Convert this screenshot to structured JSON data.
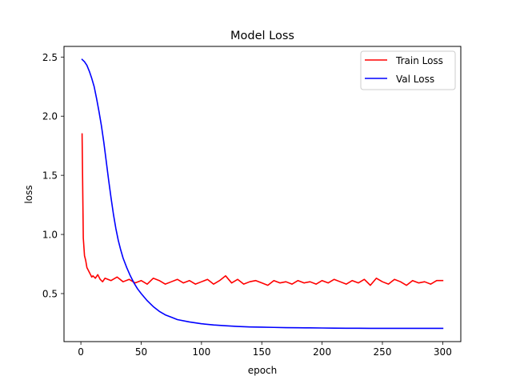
{
  "chart_data": {
    "type": "line",
    "title": "Model Loss",
    "xlabel": "epoch",
    "ylabel": "loss",
    "xlim": [
      -14,
      315
    ],
    "ylim": [
      0.094,
      2.59
    ],
    "xticks": [
      0,
      50,
      100,
      150,
      200,
      250,
      300
    ],
    "xtick_labels": [
      "0",
      "50",
      "100",
      "150",
      "200",
      "250",
      "300"
    ],
    "yticks": [
      0.5,
      1.0,
      1.5,
      2.0,
      2.5
    ],
    "ytick_labels": [
      "0.5",
      "1.0",
      "1.5",
      "2.0",
      "2.5"
    ],
    "grid": false,
    "legend_position": "top-right",
    "series": [
      {
        "name": "Train Loss",
        "color": "#ff0000",
        "x": [
          1,
          2,
          3,
          4,
          5,
          6,
          7,
          8,
          9,
          10,
          12,
          14,
          16,
          18,
          20,
          25,
          30,
          35,
          40,
          45,
          50,
          55,
          60,
          65,
          70,
          75,
          80,
          85,
          90,
          95,
          100,
          105,
          110,
          115,
          120,
          125,
          130,
          135,
          140,
          145,
          150,
          155,
          160,
          165,
          170,
          175,
          180,
          185,
          190,
          195,
          200,
          205,
          210,
          215,
          220,
          225,
          230,
          235,
          240,
          245,
          250,
          255,
          260,
          265,
          270,
          275,
          280,
          285,
          290,
          295,
          300
        ],
        "y": [
          1.85,
          0.97,
          0.82,
          0.78,
          0.72,
          0.7,
          0.68,
          0.66,
          0.64,
          0.65,
          0.63,
          0.66,
          0.62,
          0.6,
          0.63,
          0.61,
          0.64,
          0.6,
          0.62,
          0.59,
          0.61,
          0.58,
          0.63,
          0.61,
          0.58,
          0.6,
          0.62,
          0.59,
          0.61,
          0.58,
          0.6,
          0.62,
          0.58,
          0.61,
          0.65,
          0.59,
          0.62,
          0.58,
          0.6,
          0.61,
          0.59,
          0.57,
          0.61,
          0.59,
          0.6,
          0.58,
          0.61,
          0.59,
          0.6,
          0.58,
          0.61,
          0.59,
          0.62,
          0.6,
          0.58,
          0.61,
          0.59,
          0.62,
          0.57,
          0.63,
          0.6,
          0.58,
          0.62,
          0.6,
          0.57,
          0.61,
          0.59,
          0.6,
          0.58,
          0.61,
          0.61
        ]
      },
      {
        "name": "Val Loss",
        "color": "#0000ff",
        "x": [
          1,
          3,
          5,
          7,
          9,
          11,
          13,
          15,
          17,
          19,
          21,
          23,
          25,
          27,
          29,
          31,
          33,
          35,
          38,
          41,
          44,
          47,
          50,
          55,
          60,
          65,
          70,
          75,
          80,
          90,
          100,
          110,
          120,
          130,
          140,
          150,
          160,
          170,
          180,
          190,
          200,
          210,
          220,
          230,
          240,
          250,
          260,
          270,
          280,
          290,
          300
        ],
        "y": [
          2.48,
          2.46,
          2.43,
          2.38,
          2.32,
          2.25,
          2.15,
          2.04,
          1.92,
          1.78,
          1.62,
          1.46,
          1.31,
          1.17,
          1.05,
          0.95,
          0.87,
          0.8,
          0.72,
          0.65,
          0.59,
          0.54,
          0.5,
          0.44,
          0.39,
          0.35,
          0.32,
          0.3,
          0.28,
          0.26,
          0.245,
          0.235,
          0.228,
          0.222,
          0.218,
          0.216,
          0.214,
          0.212,
          0.211,
          0.21,
          0.209,
          0.208,
          0.207,
          0.207,
          0.206,
          0.206,
          0.206,
          0.206,
          0.206,
          0.206,
          0.206
        ]
      }
    ]
  }
}
